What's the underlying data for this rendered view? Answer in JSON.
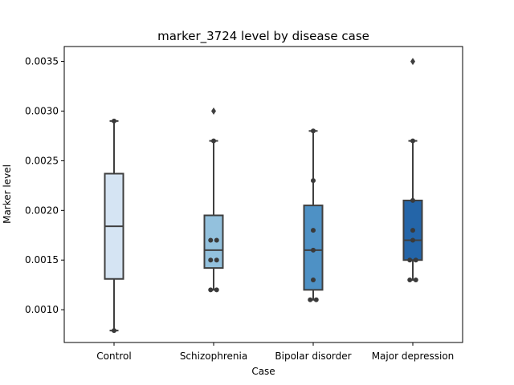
{
  "chart_data": {
    "type": "box",
    "title": "marker_3724 level by disease case",
    "xlabel": "Case",
    "ylabel": "Marker level",
    "categories": [
      "Control",
      "Schizophrenia",
      "Bipolar disorder",
      "Major depression"
    ],
    "ylim": [
      0.00067,
      0.00365
    ],
    "yticks": [
      0.001,
      0.0015,
      0.002,
      0.0025,
      0.003,
      0.0035
    ],
    "ytick_labels": [
      "0.0010",
      "0.0015",
      "0.0020",
      "0.0025",
      "0.0030",
      "0.0035"
    ],
    "grid": false,
    "colors": [
      "#d5e4f3",
      "#93c1dd",
      "#4e91c5",
      "#2465a8"
    ],
    "boxes": [
      {
        "name": "Control",
        "q1": 0.00131,
        "median": 0.00184,
        "q3": 0.00237,
        "whisker_low": 0.00079,
        "whisker_high": 0.0029,
        "outliers": []
      },
      {
        "name": "Schizophrenia",
        "q1": 0.00142,
        "median": 0.0016,
        "q3": 0.00195,
        "whisker_low": 0.0012,
        "whisker_high": 0.0027,
        "outliers": [
          0.003
        ]
      },
      {
        "name": "Bipolar disorder",
        "q1": 0.0012,
        "median": 0.0016,
        "q3": 0.00205,
        "whisker_low": 0.0011,
        "whisker_high": 0.0028,
        "outliers": []
      },
      {
        "name": "Major depression",
        "q1": 0.0015,
        "median": 0.0017,
        "q3": 0.0021,
        "whisker_low": 0.0013,
        "whisker_high": 0.0027,
        "outliers": [
          0.0035
        ]
      }
    ],
    "points": [
      {
        "category": "Control",
        "values": [
          0.00079,
          0.0029
        ]
      },
      {
        "category": "Schizophrenia",
        "values": [
          0.0027,
          0.0017,
          0.0017,
          0.0015,
          0.0015,
          0.0012,
          0.0012
        ]
      },
      {
        "category": "Bipolar disorder",
        "values": [
          0.0028,
          0.0023,
          0.0018,
          0.0016,
          0.0013,
          0.0011,
          0.0011
        ]
      },
      {
        "category": "Major depression",
        "values": [
          0.0027,
          0.0021,
          0.0018,
          0.0017,
          0.0015,
          0.0015,
          0.0013,
          0.0013
        ]
      }
    ]
  }
}
